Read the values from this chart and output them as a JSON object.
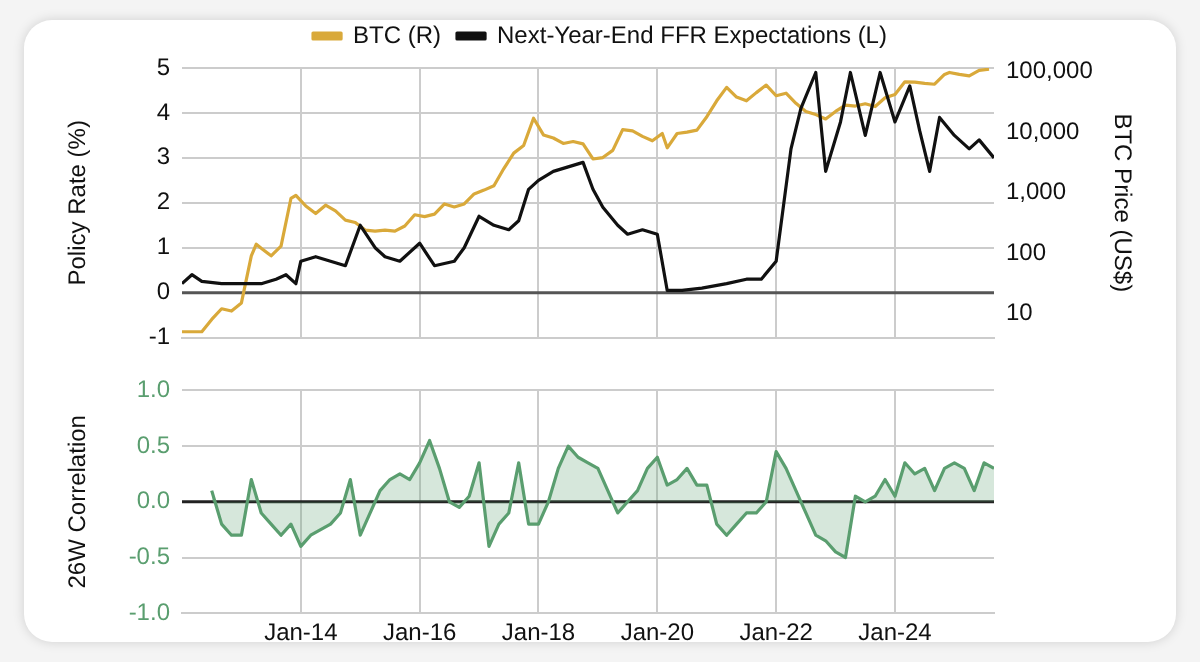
{
  "chart_data": [
    {
      "type": "line",
      "ylabel": "Policy Rate (%)",
      "y2label": "BTC Price (US$)",
      "legend": "top",
      "grid": true,
      "tick_labels": "y",
      "log": "y2",
      "xlim": [
        "2012-01",
        "2025-09"
      ],
      "xticks": [
        {
          "value": "2014-01",
          "label": null
        },
        {
          "value": "2016-01",
          "label": null
        },
        {
          "value": "2018-01",
          "label": null
        },
        {
          "value": "2020-01",
          "label": null
        },
        {
          "value": "2022-01",
          "label": null
        },
        {
          "value": "2024-01",
          "label": null
        }
      ],
      "ylim": [
        -1,
        5
      ],
      "yticks": [
        -1,
        0,
        1,
        2,
        3,
        4,
        5
      ],
      "y2lim": [
        4,
        115000
      ],
      "y2ticks": [
        10,
        100,
        {
          "value": 1000,
          "label": "1,000"
        },
        {
          "value": 10000,
          "label": "10,000"
        },
        {
          "value": 100000,
          "label": "100,000"
        }
      ],
      "ref_lines": [
        {
          "axis": "y",
          "value": 0,
          "color": "#555555"
        }
      ],
      "series": [
        {
          "name": "BTC (R)",
          "color": "#d9a93a",
          "axis": "y2",
          "x": [
            "2012-01",
            "2012-03",
            "2012-05",
            "2012-07",
            "2012-09",
            "2012-11",
            "2013-01",
            "2013-03",
            "2013-04",
            "2013-05",
            "2013-07",
            "2013-09",
            "2013-11",
            "2013-12",
            "2014-02",
            "2014-04",
            "2014-06",
            "2014-08",
            "2014-10",
            "2014-12",
            "2015-02",
            "2015-04",
            "2015-06",
            "2015-08",
            "2015-10",
            "2015-12",
            "2016-02",
            "2016-04",
            "2016-06",
            "2016-08",
            "2016-10",
            "2016-12",
            "2017-02",
            "2017-04",
            "2017-06",
            "2017-08",
            "2017-10",
            "2017-12",
            "2018-02",
            "2018-04",
            "2018-06",
            "2018-08",
            "2018-10",
            "2018-12",
            "2019-02",
            "2019-04",
            "2019-06",
            "2019-08",
            "2019-10",
            "2019-12",
            "2020-02",
            "2020-03",
            "2020-05",
            "2020-07",
            "2020-09",
            "2020-11",
            "2021-01",
            "2021-03",
            "2021-05",
            "2021-07",
            "2021-09",
            "2021-11",
            "2022-01",
            "2022-03",
            "2022-05",
            "2022-07",
            "2022-09",
            "2022-11",
            "2023-01",
            "2023-03",
            "2023-05",
            "2023-07",
            "2023-09",
            "2023-11",
            "2024-01",
            "2024-03",
            "2024-05",
            "2024-07",
            "2024-09",
            "2024-11",
            "2024-12",
            "2025-02",
            "2025-04",
            "2025-06",
            "2025-08"
          ],
          "values": [
            5,
            5,
            5,
            8,
            12,
            11,
            15,
            90,
            140,
            120,
            90,
            130,
            800,
            900,
            600,
            450,
            620,
            500,
            350,
            320,
            240,
            230,
            240,
            230,
            280,
            430,
            400,
            440,
            650,
            580,
            650,
            950,
            1100,
            1300,
            2500,
            4500,
            6000,
            17000,
            9000,
            8000,
            6500,
            7000,
            6400,
            3600,
            3800,
            5000,
            11000,
            10500,
            8500,
            7200,
            9500,
            5500,
            9500,
            10000,
            10800,
            18000,
            33000,
            55000,
            38000,
            33000,
            45000,
            60000,
            40000,
            44000,
            30000,
            22000,
            19500,
            16500,
            22000,
            28000,
            27000,
            29500,
            26500,
            37000,
            42000,
            68000,
            67000,
            64000,
            62000,
            90000,
            97000,
            90000,
            85000,
            105000,
            110000
          ]
        },
        {
          "name": "Next-Year-End FFR Expectations (L)",
          "color": "#111111",
          "x": [
            "2012-01",
            "2012-03",
            "2012-05",
            "2012-09",
            "2013-01",
            "2013-05",
            "2013-08",
            "2013-10",
            "2013-12",
            "2014-01",
            "2014-04",
            "2014-07",
            "2014-10",
            "2015-01",
            "2015-04",
            "2015-06",
            "2015-09",
            "2016-01",
            "2016-04",
            "2016-08",
            "2016-10",
            "2017-01",
            "2017-04",
            "2017-07",
            "2017-09",
            "2017-11",
            "2018-01",
            "2018-04",
            "2018-07",
            "2018-10",
            "2018-12",
            "2019-02",
            "2019-05",
            "2019-07",
            "2019-10",
            "2020-01",
            "2020-03",
            "2020-06",
            "2020-10",
            "2021-03",
            "2021-07",
            "2021-10",
            "2022-01",
            "2022-04",
            "2022-06",
            "2022-09",
            "2022-11",
            "2023-02",
            "2023-04",
            "2023-07",
            "2023-10",
            "2024-01",
            "2024-04",
            "2024-06",
            "2024-08",
            "2024-10",
            "2025-01",
            "2025-04",
            "2025-06",
            "2025-09"
          ],
          "values": [
            0.2,
            0.4,
            0.25,
            0.2,
            0.2,
            0.2,
            0.3,
            0.4,
            0.2,
            0.7,
            0.8,
            0.7,
            0.6,
            1.5,
            1.0,
            0.8,
            0.7,
            1.1,
            0.6,
            0.7,
            1.0,
            1.7,
            1.5,
            1.4,
            1.6,
            2.3,
            2.5,
            2.7,
            2.8,
            2.9,
            2.3,
            1.9,
            1.5,
            1.3,
            1.4,
            1.3,
            0.05,
            0.05,
            0.1,
            0.2,
            0.3,
            0.3,
            0.7,
            3.2,
            4.1,
            4.9,
            2.7,
            3.8,
            4.9,
            3.5,
            4.9,
            3.8,
            4.6,
            3.6,
            2.7,
            3.9,
            3.5,
            3.2,
            3.4,
            3.0
          ]
        }
      ]
    },
    {
      "type": "area",
      "ylabel": "26W Correlation",
      "grid": true,
      "xlim": [
        "2012-01",
        "2025-09"
      ],
      "xticks": [
        {
          "value": "2014-01",
          "label": "Jan-14"
        },
        {
          "value": "2016-01",
          "label": "Jan-16"
        },
        {
          "value": "2018-01",
          "label": "Jan-18"
        },
        {
          "value": "2020-01",
          "label": "Jan-20"
        },
        {
          "value": "2022-01",
          "label": "Jan-22"
        },
        {
          "value": "2024-01",
          "label": "Jan-24"
        }
      ],
      "ylim": [
        -1,
        1
      ],
      "yticks": [
        {
          "value": -1,
          "label": "-1.0"
        },
        {
          "value": -0.5,
          "label": "-0.5"
        },
        {
          "value": 0,
          "label": "0.0"
        },
        {
          "value": 0.5,
          "label": "0.5"
        },
        {
          "value": 1,
          "label": "1.0"
        }
      ],
      "ref_lines": [
        {
          "axis": "y",
          "value": 0,
          "color": "#222222"
        }
      ],
      "series": [
        {
          "color": "#5a9e6f",
          "x": [
            "2012-07",
            "2012-09",
            "2012-11",
            "2013-01",
            "2013-03",
            "2013-05",
            "2013-07",
            "2013-09",
            "2013-11",
            "2014-01",
            "2014-03",
            "2014-05",
            "2014-07",
            "2014-09",
            "2014-11",
            "2015-01",
            "2015-03",
            "2015-05",
            "2015-07",
            "2015-09",
            "2015-11",
            "2016-01",
            "2016-03",
            "2016-05",
            "2016-07",
            "2016-09",
            "2016-11",
            "2017-01",
            "2017-03",
            "2017-05",
            "2017-07",
            "2017-09",
            "2017-11",
            "2018-01",
            "2018-03",
            "2018-05",
            "2018-07",
            "2018-09",
            "2018-11",
            "2019-01",
            "2019-03",
            "2019-05",
            "2019-07",
            "2019-09",
            "2019-11",
            "2020-01",
            "2020-03",
            "2020-05",
            "2020-07",
            "2020-09",
            "2020-11",
            "2021-01",
            "2021-03",
            "2021-05",
            "2021-07",
            "2021-09",
            "2021-11",
            "2022-01",
            "2022-03",
            "2022-05",
            "2022-07",
            "2022-09",
            "2022-11",
            "2023-01",
            "2023-03",
            "2023-05",
            "2023-07",
            "2023-09",
            "2023-11",
            "2024-01",
            "2024-03",
            "2024-05",
            "2024-07",
            "2024-09",
            "2024-11",
            "2025-01",
            "2025-03",
            "2025-05",
            "2025-07",
            "2025-09"
          ],
          "values": [
            0.1,
            -0.2,
            -0.3,
            -0.3,
            0.2,
            -0.1,
            -0.2,
            -0.3,
            -0.2,
            -0.4,
            -0.3,
            -0.25,
            -0.2,
            -0.1,
            0.2,
            -0.3,
            -0.1,
            0.1,
            0.2,
            0.25,
            0.2,
            0.35,
            0.55,
            0.3,
            0.0,
            -0.05,
            0.05,
            0.35,
            -0.4,
            -0.2,
            -0.1,
            0.35,
            -0.2,
            -0.2,
            0.0,
            0.3,
            0.5,
            0.4,
            0.35,
            0.3,
            0.1,
            -0.1,
            0.0,
            0.1,
            0.3,
            0.4,
            0.15,
            0.2,
            0.3,
            0.15,
            0.15,
            -0.2,
            -0.3,
            -0.2,
            -0.1,
            -0.1,
            0.0,
            0.45,
            0.3,
            0.1,
            -0.1,
            -0.3,
            -0.35,
            -0.45,
            -0.5,
            0.05,
            0.0,
            0.05,
            0.2,
            0.05,
            0.35,
            0.25,
            0.3,
            0.1,
            0.3,
            0.35,
            0.3,
            0.1,
            0.35,
            0.3
          ]
        }
      ]
    }
  ]
}
